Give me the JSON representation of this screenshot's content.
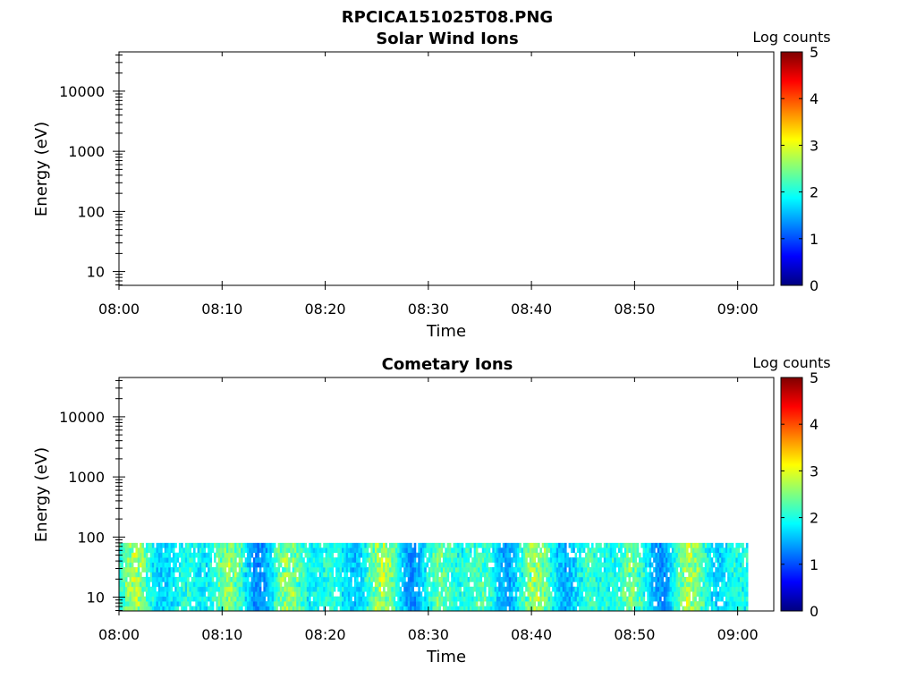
{
  "figure_title": "RPCICA151025T08.PNG",
  "colors": {
    "axis": "#000000",
    "background": "#ffffff",
    "colormap": [
      "#00007f",
      "#0000ff",
      "#007fff",
      "#00ffff",
      "#7fff7f",
      "#ffff00",
      "#ff7f00",
      "#ff0000",
      "#7f0000"
    ]
  },
  "chart_data": [
    {
      "type": "heatmap",
      "title": "Solar Wind Ions",
      "xlabel": "Time",
      "ylabel": "Energy (eV)",
      "x_ticks": [
        "08:00",
        "08:10",
        "08:20",
        "08:30",
        "08:40",
        "08:50",
        "09:00"
      ],
      "x_range_minutes": [
        0,
        63.5
      ],
      "y_scale": "log",
      "y_ticks": [
        "10",
        "100",
        "1000",
        "10000"
      ],
      "y_range": [
        5.9,
        45000
      ],
      "colorbar": {
        "label": "Log counts",
        "range": [
          0,
          5
        ],
        "ticks": [
          "0",
          "1",
          "2",
          "3",
          "4",
          "5"
        ]
      },
      "data_summary": "no counts recorded (empty panel)"
    },
    {
      "type": "heatmap",
      "title": "Cometary Ions",
      "xlabel": "Time",
      "ylabel": "Energy (eV)",
      "x_ticks": [
        "08:00",
        "08:10",
        "08:20",
        "08:30",
        "08:40",
        "08:50",
        "09:00"
      ],
      "x_range_minutes": [
        0,
        63.5
      ],
      "y_scale": "log",
      "y_ticks": [
        "10",
        "100",
        "1000",
        "10000"
      ],
      "y_range": [
        5.9,
        45000
      ],
      "colorbar": {
        "label": "Log counts",
        "range": [
          0,
          5
        ],
        "ticks": [
          "0",
          "1",
          "2",
          "3",
          "4",
          "5"
        ]
      },
      "data_extent": {
        "time_start_minutes": 0,
        "time_end_minutes": 61,
        "energy_min_eV": 5.9,
        "energy_max_eV": 80
      },
      "typical_log_counts": [
        1.0,
        3.2
      ]
    }
  ]
}
